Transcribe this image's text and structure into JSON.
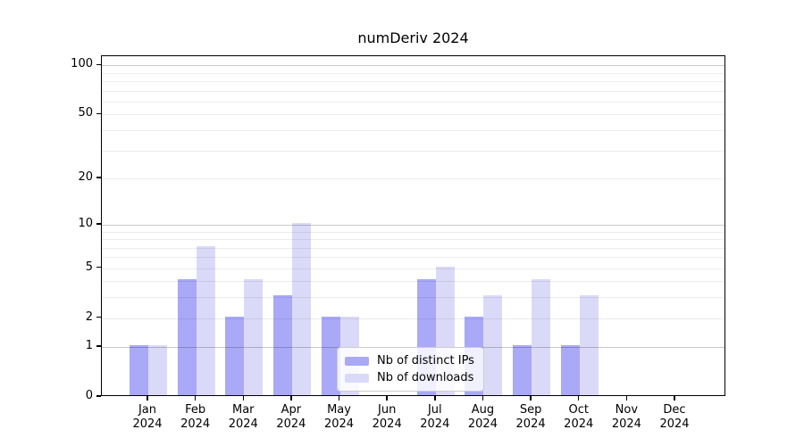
{
  "chart_data": {
    "type": "bar",
    "title": "numDeriv 2024",
    "categories": [
      "Jan",
      "Feb",
      "Mar",
      "Apr",
      "May",
      "Jun",
      "Jul",
      "Aug",
      "Sep",
      "Oct",
      "Nov",
      "Dec"
    ],
    "year_label": "2024",
    "series": [
      {
        "name": "Nb of distinct IPs",
        "color": "#a9a9f7",
        "values": [
          1,
          4,
          2,
          3,
          2,
          0,
          4,
          2,
          1,
          1,
          0,
          0
        ]
      },
      {
        "name": "Nb of downloads",
        "color": "#dadaf8",
        "values": [
          1,
          7,
          4,
          10,
          2,
          0,
          5,
          3,
          4,
          3,
          0,
          0
        ]
      }
    ],
    "y_axis": {
      "scale": "log10(value+1)",
      "tick_values": [
        0,
        1,
        2,
        5,
        10,
        20,
        50,
        100
      ],
      "tick_labels": [
        "0",
        "1",
        "2",
        "5",
        "10",
        "20",
        "50",
        "100"
      ]
    },
    "grid": {
      "minor_values": [
        2,
        3,
        4,
        5,
        6,
        7,
        8,
        9,
        20,
        30,
        40,
        50,
        60,
        70,
        80,
        90
      ],
      "major_values": [
        1,
        10,
        100
      ],
      "minor_color": "#ececec",
      "major_color": "#c9c9c9"
    },
    "legend_position": "lower-center",
    "background_color": "#ffffff",
    "axis_color": "#000000"
  }
}
